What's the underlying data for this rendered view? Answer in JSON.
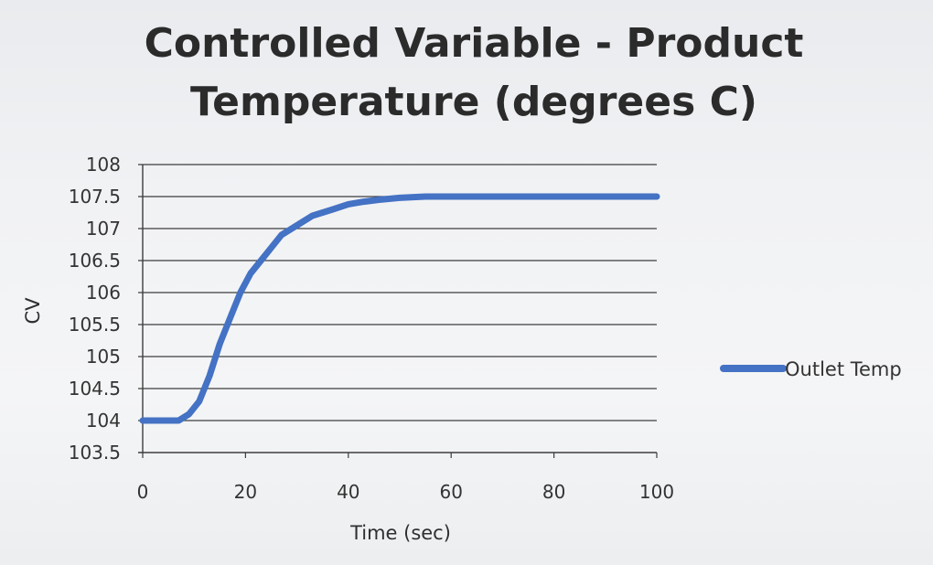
{
  "chart_data": {
    "type": "line",
    "title_lines": [
      "Controlled Variable - Product",
      "Temperature (degrees C)"
    ],
    "xlabel": "Time (sec)",
    "ylabel": "CV",
    "xlim": [
      0,
      100
    ],
    "ylim": [
      103.5,
      108
    ],
    "xticks": [
      "0",
      "20",
      "40",
      "60",
      "80",
      "100"
    ],
    "yticks": [
      "108",
      "107.5",
      "107",
      "106.5",
      "106",
      "105.5",
      "105",
      "104.5",
      "104",
      "103.5"
    ],
    "grid": "horizontal",
    "legend_position": "right",
    "series": [
      {
        "name": "Outlet Temp",
        "color": "#4472c4",
        "x": [
          0,
          5,
          7,
          9,
          11,
          13,
          15,
          17,
          19,
          21,
          23,
          25,
          27,
          29,
          31,
          33,
          35,
          37,
          40,
          43,
          46,
          50,
          55,
          60,
          65,
          70,
          80,
          90,
          100
        ],
        "y": [
          104.0,
          104.0,
          104.0,
          104.1,
          104.3,
          104.7,
          105.2,
          105.6,
          106.0,
          106.3,
          106.5,
          106.7,
          106.9,
          107.0,
          107.1,
          107.2,
          107.25,
          107.3,
          107.38,
          107.42,
          107.45,
          107.48,
          107.5,
          107.5,
          107.5,
          107.5,
          107.5,
          107.5,
          107.5
        ]
      }
    ]
  }
}
